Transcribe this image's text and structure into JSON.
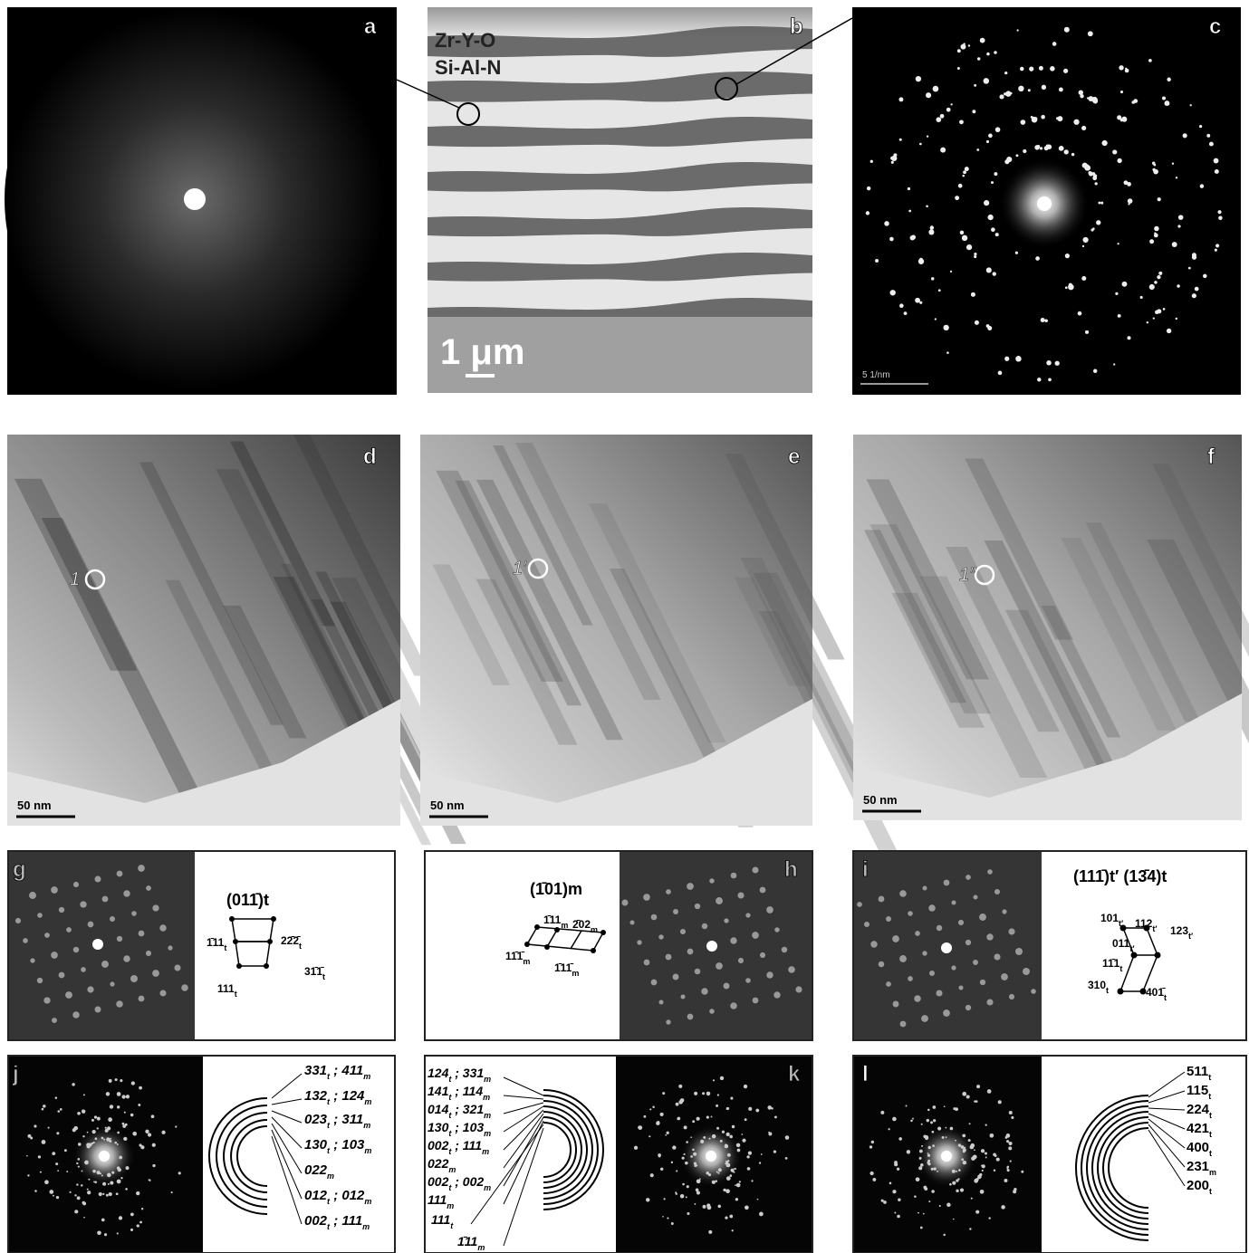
{
  "panel_labels": [
    "a",
    "b",
    "c",
    "d",
    "e",
    "f",
    "g",
    "h",
    "i",
    "j",
    "k",
    "l"
  ],
  "b": {
    "layers": [
      "Zr-Y-O",
      "Si-Al-N"
    ],
    "scale": "1 μm"
  },
  "c": {
    "scale": "5 1/nm"
  },
  "bright_field": {
    "scale": "50 nm",
    "markers": [
      "1",
      "1′",
      "1″"
    ]
  },
  "g": {
    "title": "(011̄)t",
    "labels": [
      [
        "1̄11",
        "t"
      ],
      [
        "22̄2̄",
        "t"
      ],
      [
        "31̄1̄",
        "t"
      ],
      [
        "111",
        "t"
      ]
    ]
  },
  "h": {
    "title": "(1̄01)m",
    "labels": [
      [
        "1̄11",
        "m"
      ],
      [
        "2̄02",
        "m"
      ],
      [
        "11̄1̄",
        "m"
      ],
      [
        "1̄11̄",
        "m"
      ]
    ]
  },
  "i": {
    "title": "(111̄)t′  (13̄4)t",
    "labels": [
      [
        "101",
        "t′"
      ],
      [
        "112",
        "t′"
      ],
      [
        "123",
        "t′"
      ],
      [
        "011",
        "t′"
      ],
      [
        "11̄1",
        "t"
      ],
      [
        "310",
        "t"
      ],
      [
        "401̄",
        "t"
      ]
    ]
  },
  "j": {
    "labels": [
      [
        "331",
        "t",
        " ; 411",
        "m"
      ],
      [
        "132",
        "t",
        " ; 124",
        "m"
      ],
      [
        "023",
        "t",
        " ; 311",
        "m"
      ],
      [
        "130",
        "t",
        " ; 103",
        "m"
      ],
      [
        "022",
        "m"
      ],
      [
        "012",
        "t",
        " ; 012",
        "m"
      ],
      [
        "002",
        "t",
        " ; 111",
        "m"
      ]
    ]
  },
  "k": {
    "labels": [
      [
        "124",
        "t",
        " ; 331",
        "m"
      ],
      [
        "141",
        "t",
        " ; 114",
        "m"
      ],
      [
        "014",
        "t",
        " ; 321",
        "m"
      ],
      [
        "130",
        "t",
        " ; 103",
        "m"
      ],
      [
        "002",
        "t",
        " ; 111",
        "m"
      ],
      [
        "022",
        "m"
      ],
      [
        "002",
        "t",
        " ; 002",
        "m"
      ],
      [
        "111",
        "m"
      ],
      [
        "111",
        "t"
      ],
      [
        "1̄11",
        "m"
      ]
    ]
  },
  "l": {
    "labels": [
      [
        "511",
        "t"
      ],
      [
        "115",
        "t"
      ],
      [
        "224",
        "t"
      ],
      [
        "421",
        "t"
      ],
      [
        "400",
        "t"
      ],
      [
        "231",
        "m"
      ],
      [
        "200",
        "t"
      ]
    ]
  }
}
